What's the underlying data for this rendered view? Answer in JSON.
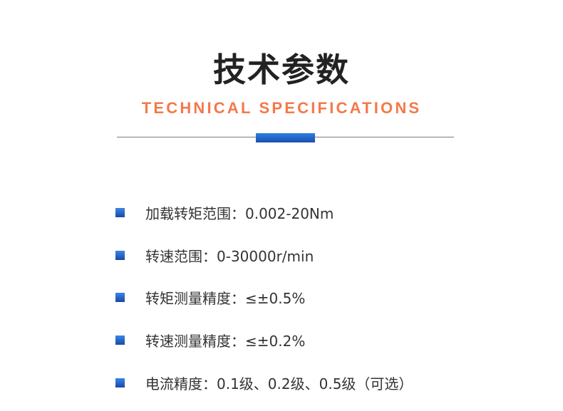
{
  "header": {
    "title": "技术参数",
    "subtitle": "TECHNICAL SPECIFICATIONS"
  },
  "colors": {
    "accent": "#f5784a",
    "bullet": "#1f5fc4"
  },
  "specs": [
    {
      "text": "加载转矩范围：0.002-20Nm"
    },
    {
      "text": "转速范围：0-30000r/min"
    },
    {
      "text": "转矩测量精度：≤±0.5%"
    },
    {
      "text": "转速测量精度：≤±0.2%"
    },
    {
      "text": "电流精度：0.1级、0.2级、0.5级（可选）"
    }
  ]
}
